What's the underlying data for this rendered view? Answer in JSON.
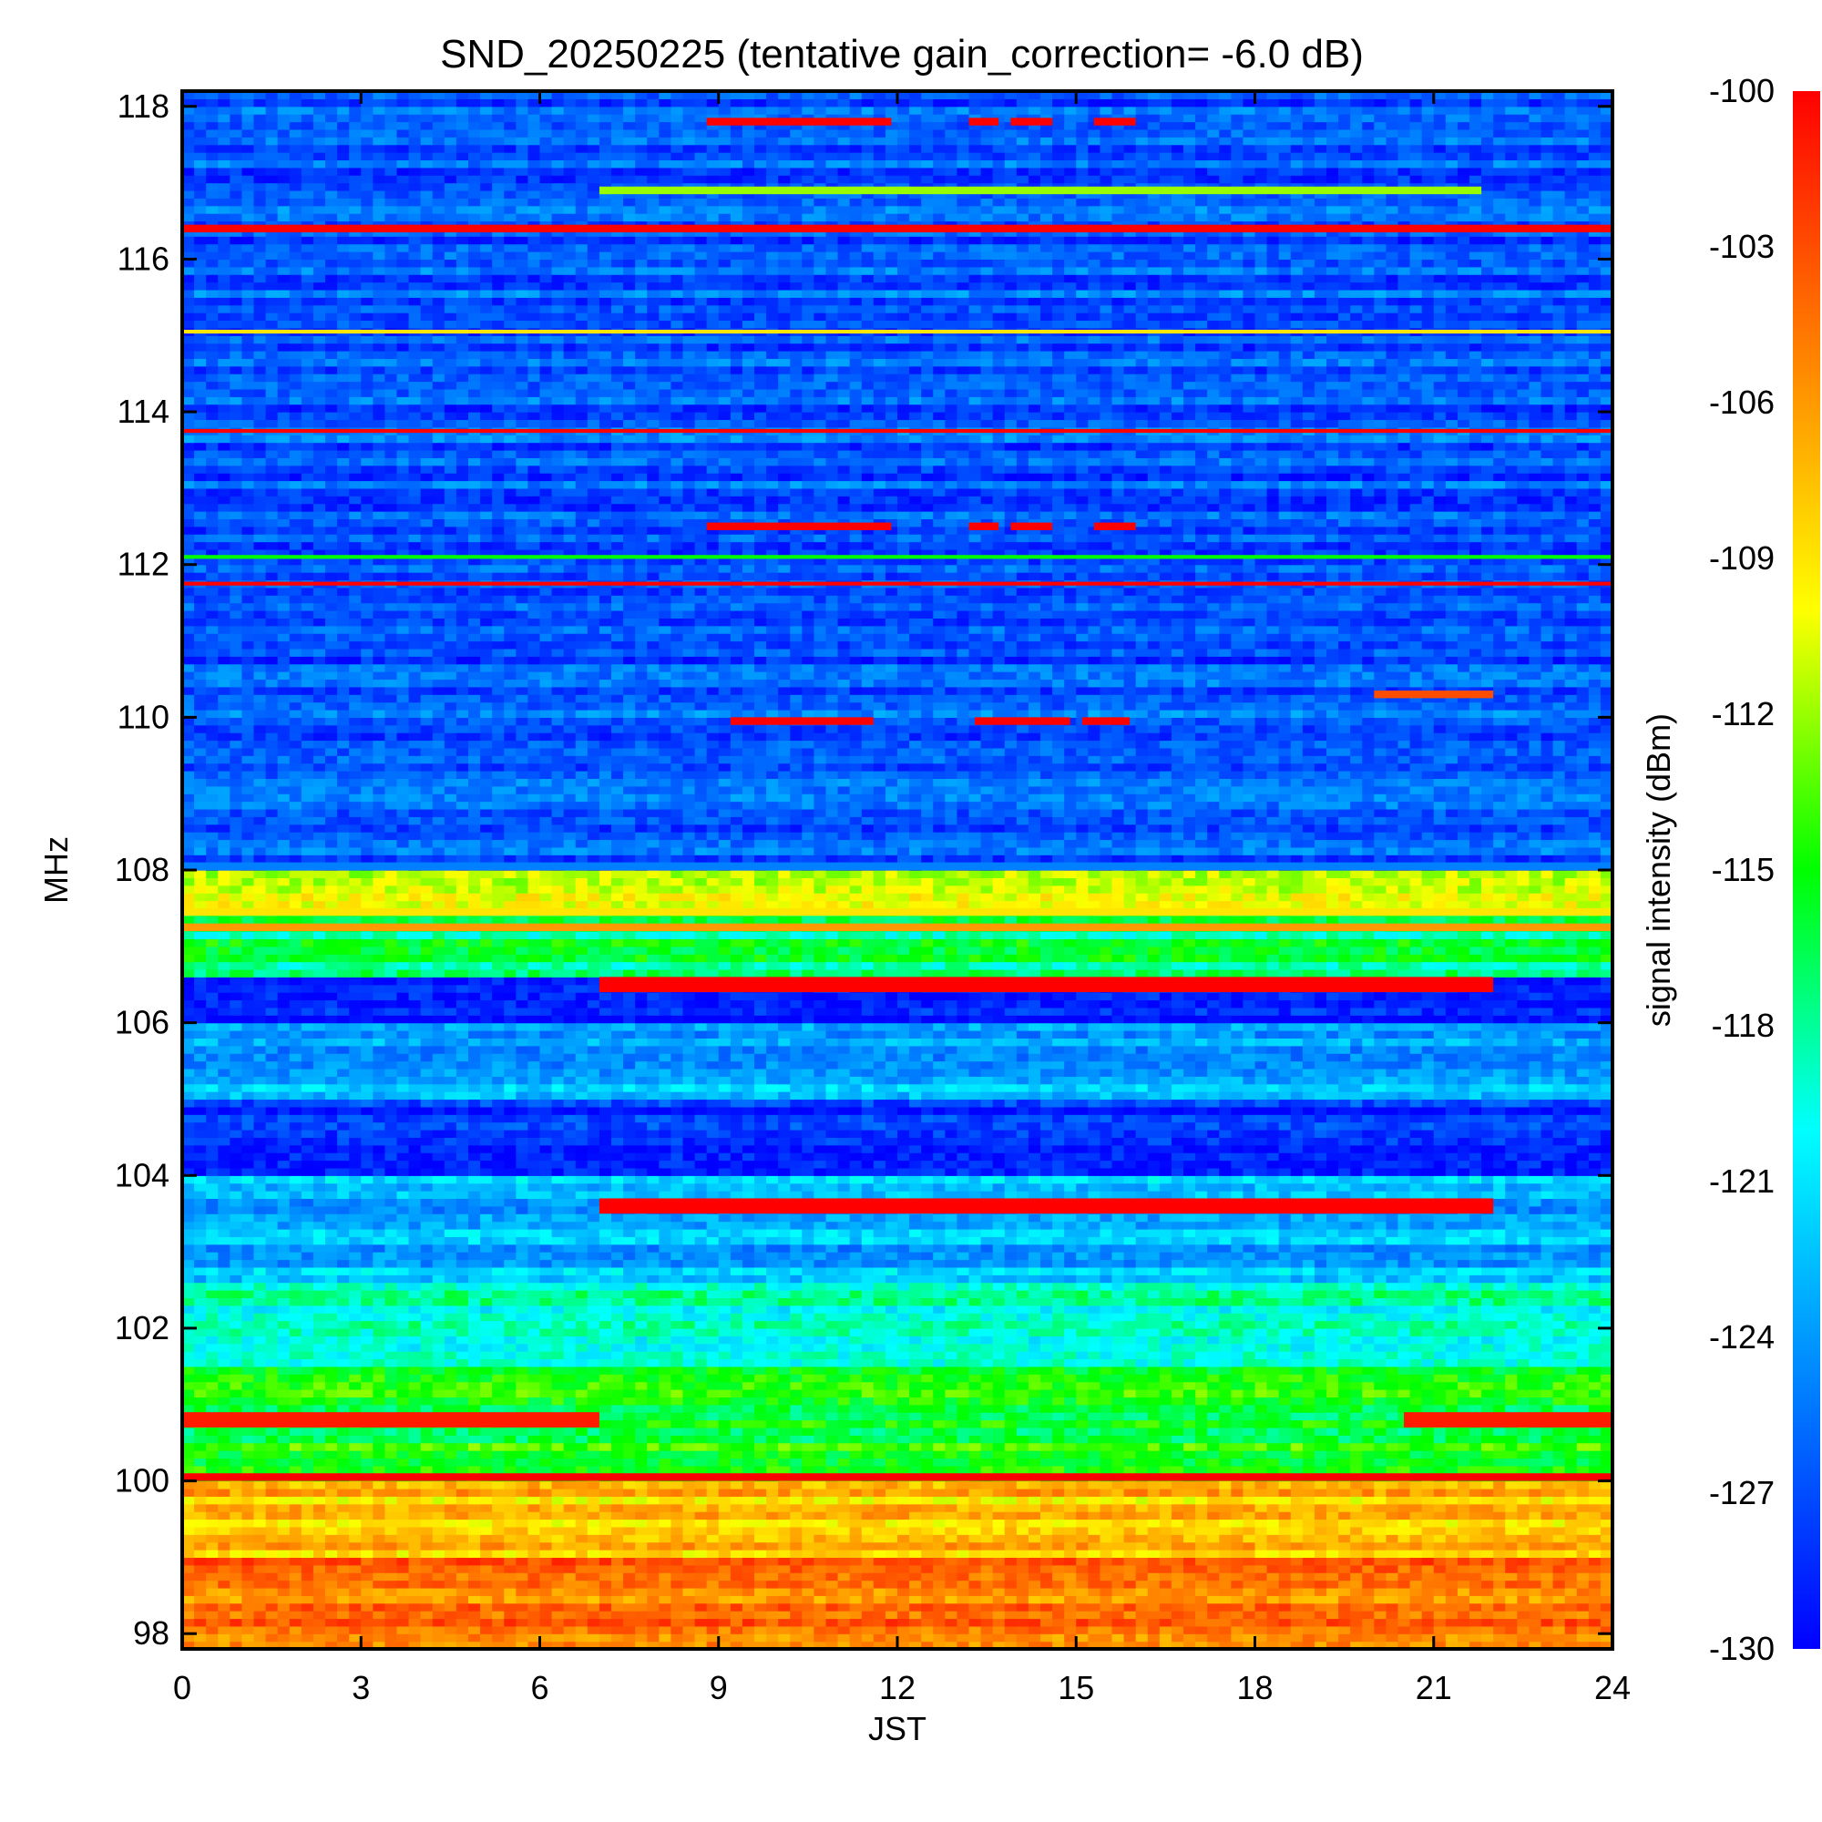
{
  "chart_data": {
    "type": "heatmap",
    "title": "SND_20250225 (tentative gain_correction= -6.0 dB)",
    "xlabel": "JST",
    "ylabel": "MHz",
    "colorbar_label": "signal intensity (dBm)",
    "xlim": [
      0,
      24
    ],
    "ylim": [
      97.8,
      118.2
    ],
    "clim": [
      -130,
      -100
    ],
    "x_ticks": [
      0,
      3,
      6,
      9,
      12,
      15,
      18,
      21,
      24
    ],
    "y_ticks": [
      98,
      100,
      102,
      104,
      106,
      108,
      110,
      112,
      114,
      116,
      118
    ],
    "colorbar_ticks": [
      -100,
      -103,
      -106,
      -109,
      -112,
      -115,
      -118,
      -121,
      -124,
      -127,
      -130
    ],
    "colormap": [
      "#0000ff",
      "#0080ff",
      "#00ffff",
      "#00ff00",
      "#ffff00",
      "#ff8000",
      "#ff0000"
    ],
    "background_profile": [
      {
        "freq_min": 97.8,
        "freq_max": 99.0,
        "value": -104.5
      },
      {
        "freq_min": 99.0,
        "freq_max": 100.0,
        "value": -108
      },
      {
        "freq_min": 100.0,
        "freq_max": 101.5,
        "value": -115
      },
      {
        "freq_min": 101.5,
        "freq_max": 102.6,
        "value": -118.5
      },
      {
        "freq_min": 102.6,
        "freq_max": 104.0,
        "value": -123
      },
      {
        "freq_min": 104.0,
        "freq_max": 105.0,
        "value": -128
      },
      {
        "freq_min": 105.0,
        "freq_max": 106.0,
        "value": -123.5
      },
      {
        "freq_min": 106.0,
        "freq_max": 106.6,
        "value": -129
      },
      {
        "freq_min": 106.6,
        "freq_max": 107.5,
        "value": -117
      },
      {
        "freq_min": 107.5,
        "freq_max": 108.0,
        "value": -111
      },
      {
        "freq_min": 108.0,
        "freq_max": 118.2,
        "value": -126.5
      }
    ],
    "bands": [
      {
        "freq": 116.4,
        "width": 0.1,
        "t_start": 0,
        "t_end": 24,
        "value": -100
      },
      {
        "freq": 115.05,
        "width": 0.05,
        "t_start": 0,
        "t_end": 24,
        "value": -109
      },
      {
        "freq": 113.75,
        "width": 0.05,
        "t_start": 0,
        "t_end": 24,
        "value": -100
      },
      {
        "freq": 112.1,
        "width": 0.05,
        "t_start": 0,
        "t_end": 24,
        "value": -115
      },
      {
        "freq": 111.75,
        "width": 0.05,
        "t_start": 0,
        "t_end": 24,
        "value": -100
      },
      {
        "freq": 108.05,
        "width": 0.1,
        "t_start": 0,
        "t_end": 24,
        "value": -125
      },
      {
        "freq": 107.45,
        "width": 0.1,
        "t_start": 0,
        "t_end": 24,
        "value": -109
      },
      {
        "freq": 107.25,
        "width": 0.1,
        "t_start": 0,
        "t_end": 24,
        "value": -106
      },
      {
        "freq": 106.5,
        "width": 0.2,
        "t_start": 7.0,
        "t_end": 22.0,
        "value": -100
      },
      {
        "freq": 103.6,
        "width": 0.2,
        "t_start": 7.0,
        "t_end": 22.0,
        "value": -100
      },
      {
        "freq": 100.8,
        "width": 0.2,
        "t_start": 0,
        "t_end": 7.0,
        "value": -101
      },
      {
        "freq": 100.8,
        "width": 0.2,
        "t_start": 20.5,
        "t_end": 24,
        "value": -101
      },
      {
        "freq": 100.05,
        "width": 0.1,
        "t_start": 0,
        "t_end": 24,
        "value": -100
      },
      {
        "freq": 116.9,
        "width": 0.1,
        "t_start": 7.0,
        "t_end": 21.8,
        "value": -112
      },
      {
        "freq": 110.3,
        "width": 0.1,
        "t_start": 20.0,
        "t_end": 22.0,
        "value": -103
      },
      {
        "freq": 117.8,
        "width": 0.1,
        "t_start": 8.8,
        "t_end": 11.9,
        "value": -100
      },
      {
        "freq": 117.8,
        "width": 0.1,
        "t_start": 13.2,
        "t_end": 13.7,
        "value": -100
      },
      {
        "freq": 117.8,
        "width": 0.1,
        "t_start": 13.9,
        "t_end": 14.6,
        "value": -100
      },
      {
        "freq": 117.8,
        "width": 0.1,
        "t_start": 15.3,
        "t_end": 16.0,
        "value": -100
      },
      {
        "freq": 112.5,
        "width": 0.1,
        "t_start": 8.8,
        "t_end": 11.9,
        "value": -100
      },
      {
        "freq": 112.5,
        "width": 0.1,
        "t_start": 13.2,
        "t_end": 13.7,
        "value": -100
      },
      {
        "freq": 112.5,
        "width": 0.1,
        "t_start": 13.9,
        "t_end": 14.6,
        "value": -100
      },
      {
        "freq": 112.5,
        "width": 0.1,
        "t_start": 15.3,
        "t_end": 16.0,
        "value": -100
      },
      {
        "freq": 109.95,
        "width": 0.1,
        "t_start": 9.2,
        "t_end": 11.6,
        "value": -100
      },
      {
        "freq": 109.95,
        "width": 0.1,
        "t_start": 13.3,
        "t_end": 14.9,
        "value": -100
      },
      {
        "freq": 109.95,
        "width": 0.1,
        "t_start": 15.1,
        "t_end": 15.9,
        "value": -100
      }
    ]
  }
}
